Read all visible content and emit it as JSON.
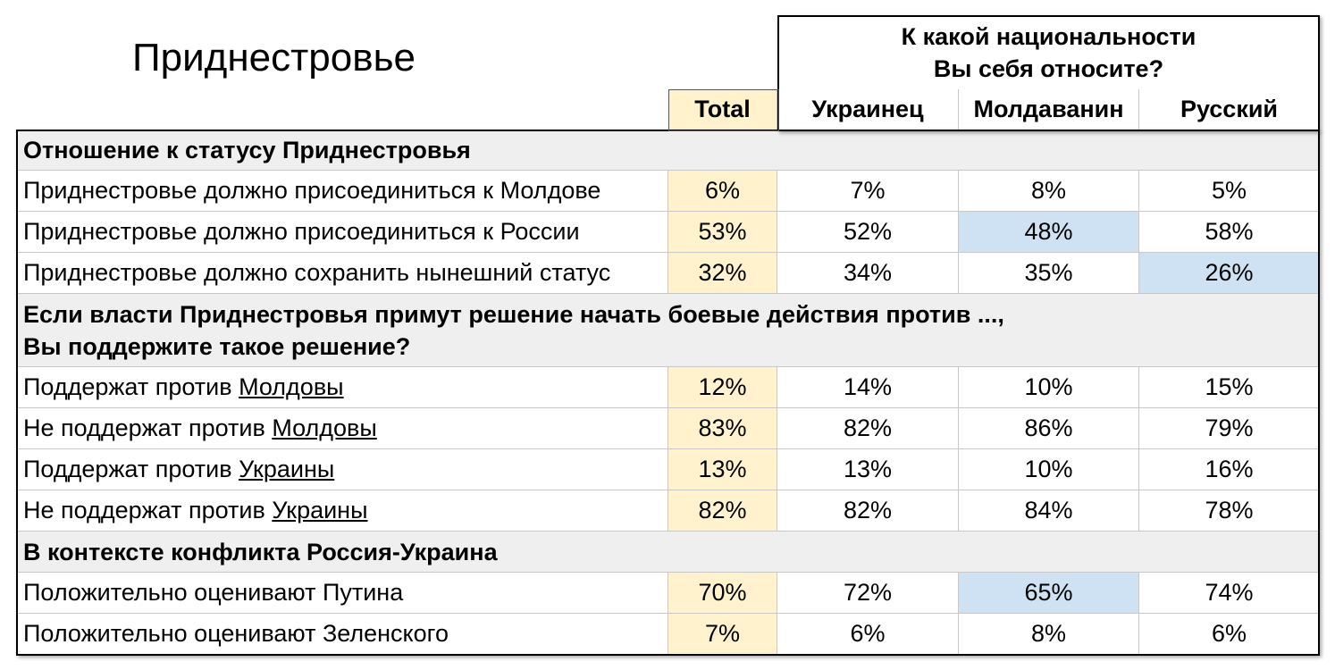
{
  "title": "Приднестровье",
  "header": {
    "group": [
      "К какой национальности",
      "Вы себя относите?"
    ],
    "columns": [
      "Total",
      "Украинец",
      "Молдаванин",
      "Русский"
    ]
  },
  "sections": [
    {
      "title": [
        "Отношение к статусу Приднестровья"
      ],
      "rows": [
        {
          "label": [
            {
              "text": "Приднестровье должно присоединиться к Молдове"
            }
          ],
          "values": [
            "6%",
            "7%",
            "8%",
            "5%"
          ]
        },
        {
          "label": [
            {
              "text": "Приднестровье должно присоединиться к России"
            }
          ],
          "values": [
            "53%",
            "52%",
            "48%",
            "58%"
          ],
          "highlight_col": 2
        },
        {
          "label": [
            {
              "text": "Приднестровье должно сохранить нынешний статус"
            }
          ],
          "values": [
            "32%",
            "34%",
            "35%",
            "26%"
          ],
          "highlight_col": 3
        }
      ]
    },
    {
      "title": [
        "Если власти Приднестровья примут решение начать боевые действия против ...,",
        "Вы поддержите такое решение?"
      ],
      "rows": [
        {
          "label": [
            {
              "text": "Поддержат против "
            },
            {
              "text": "Молдовы",
              "underline": true
            }
          ],
          "values": [
            "12%",
            "14%",
            "10%",
            "15%"
          ]
        },
        {
          "label": [
            {
              "text": "Не поддержат против "
            },
            {
              "text": "Молдовы",
              "underline": true
            }
          ],
          "values": [
            "83%",
            "82%",
            "86%",
            "79%"
          ]
        },
        {
          "label": [
            {
              "text": "Поддержат против "
            },
            {
              "text": "Украины",
              "underline": true
            }
          ],
          "values": [
            "13%",
            "13%",
            "10%",
            "16%"
          ]
        },
        {
          "label": [
            {
              "text": "Не поддержат против "
            },
            {
              "text": "Украины",
              "underline": true
            }
          ],
          "values": [
            "82%",
            "82%",
            "84%",
            "78%"
          ]
        }
      ]
    },
    {
      "title": [
        "В контексте конфликта Россия-Украина"
      ],
      "rows": [
        {
          "label": [
            {
              "text": "Положительно оценивают Путина"
            }
          ],
          "values": [
            "70%",
            "72%",
            "65%",
            "74%"
          ],
          "highlight_col": 2
        },
        {
          "label": [
            {
              "text": "Положительно оценивают Зеленского"
            }
          ],
          "values": [
            "7%",
            "6%",
            "8%",
            "6%"
          ]
        }
      ]
    }
  ]
}
